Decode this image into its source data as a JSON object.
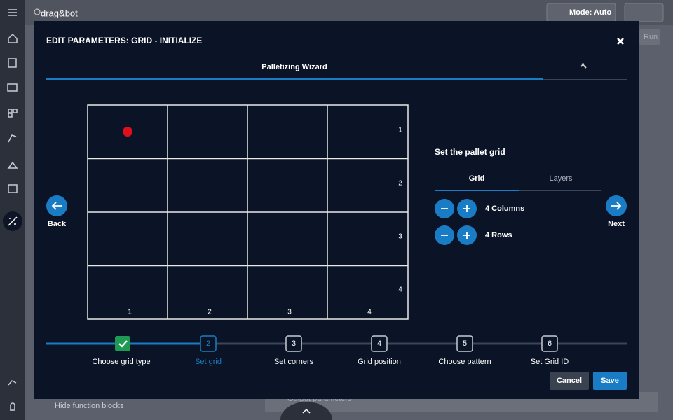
{
  "app": {
    "logo": "drag&bot",
    "mode": "Mode: Auto",
    "run": "Run",
    "hide_blocks": "Hide function blocks",
    "output_parameters": "Output parameters"
  },
  "dialog": {
    "title": "EDIT PARAMETERS: GRID - INITIALIZE",
    "tab": "Palletizing Wizard",
    "grid": {
      "row_labels": [
        1,
        2,
        3,
        4
      ],
      "column_labels": [
        1,
        2,
        3,
        4
      ]
    },
    "nav": {
      "back": "Back",
      "next": "Next"
    },
    "panel": {
      "heading": "Set the pallet grid",
      "tabs": [
        "Grid",
        "Layers"
      ],
      "columns": "4 Columns",
      "rows": "4 Rows"
    },
    "steps": [
      {
        "label": "Choose grid type"
      },
      {
        "number": 2,
        "label": "Set grid"
      },
      {
        "number": 3,
        "label": "Set corners"
      },
      {
        "number": 4,
        "label": "Grid position"
      },
      {
        "number": 5,
        "label": "Choose pattern"
      },
      {
        "number": 6,
        "label": "Set Grid ID"
      }
    ],
    "buttons": {
      "cancel": "Cancel",
      "save": "Save"
    }
  }
}
